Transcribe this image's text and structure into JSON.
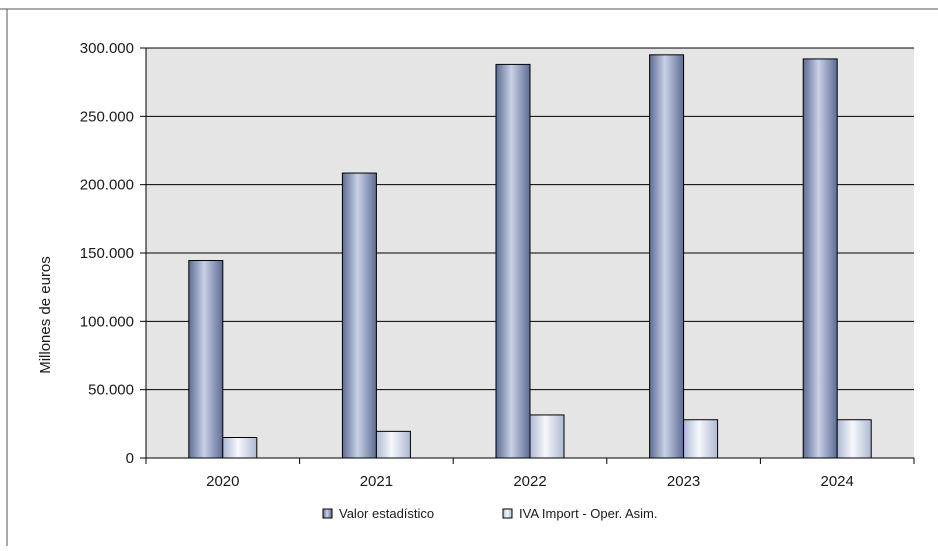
{
  "chart_data": {
    "type": "bar",
    "categories": [
      "2020",
      "2021",
      "2022",
      "2023",
      "2024"
    ],
    "series": [
      {
        "name": "Valor estadístico",
        "values": [
          144500,
          208500,
          288000,
          295000,
          292000
        ]
      },
      {
        "name": "IVA Import - Oper. Asim.",
        "values": [
          15000,
          19500,
          31500,
          28000,
          28000
        ]
      }
    ],
    "ylabel": "Millones de euros",
    "ylim": [
      0,
      300000
    ],
    "yticks": [
      0,
      50000,
      100000,
      150000,
      200000,
      250000,
      300000
    ],
    "ytick_labels": [
      "0",
      "50.000",
      "100.000",
      "150.000",
      "200.000",
      "250.000",
      "300.000"
    ],
    "grid": true,
    "legend_position": "bottom",
    "colors": {
      "plot_background": "#e5e5e5",
      "series_fill": [
        "#8a98be",
        "#dde3f0"
      ],
      "series_stroke": "#000000",
      "grid": "#000000",
      "frame": "#555555"
    }
  }
}
